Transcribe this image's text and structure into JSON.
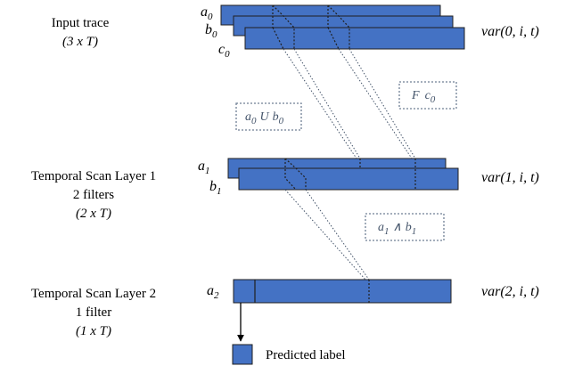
{
  "left_labels": {
    "input": [
      "Input trace",
      "(3 x T)"
    ],
    "layer1": [
      "Temporal Scan Layer 1",
      "2 filters",
      "(2 x T)"
    ],
    "layer2": [
      "Temporal Scan Layer 2",
      "1 filter",
      "(1 x T)"
    ]
  },
  "trace_labels": {
    "a0": {
      "base": "a",
      "sub": "0"
    },
    "b0": {
      "base": "b",
      "sub": "0"
    },
    "c0": {
      "base": "c",
      "sub": "0"
    },
    "a1": {
      "base": "a",
      "sub": "1"
    },
    "b1": {
      "base": "b",
      "sub": "1"
    },
    "a2": {
      "base": "a",
      "sub": "2"
    }
  },
  "var_labels": {
    "row0": "var(0, i, t)",
    "row1": "var(1, i, t)",
    "row2": "var(2, i, t)"
  },
  "annotations": {
    "until": "a0 U b0",
    "until_parts": {
      "a": "a",
      "a_sub": "0",
      "op": "U",
      "b": "b",
      "b_sub": "0"
    },
    "eventually": "F c0",
    "eventually_parts": {
      "op": "F",
      "c": "c",
      "c_sub": "0"
    },
    "and": "a1 ∧ b1",
    "and_parts": {
      "a": "a",
      "a_sub": "1",
      "op": "∧",
      "b": "b",
      "b_sub": "1"
    }
  },
  "legend": {
    "predicted_label": "Predicted label"
  },
  "colors": {
    "bar_fill": "#4472c4",
    "bar_stroke": "#1f1f1f",
    "annotation_border": "#6f7f95",
    "annotation_text": "#44546a"
  }
}
